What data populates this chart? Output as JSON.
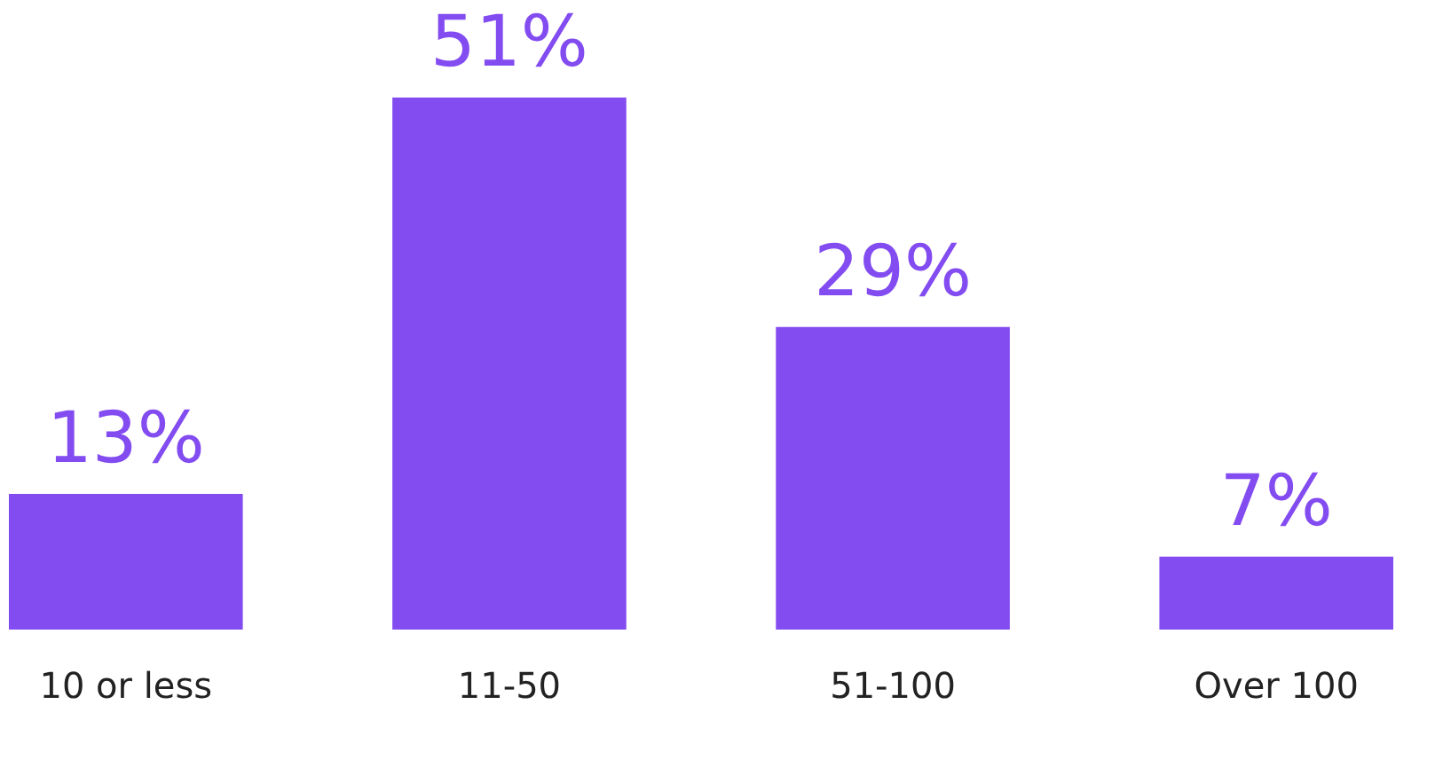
{
  "chart_data": {
    "type": "bar",
    "categories": [
      "10 or less",
      "11-50",
      "51-100",
      "Over 100"
    ],
    "values": [
      13,
      51,
      29,
      7
    ],
    "value_labels": [
      "13%",
      "51%",
      "29%",
      "7%"
    ],
    "color": "#834cf1",
    "grid": false
  }
}
